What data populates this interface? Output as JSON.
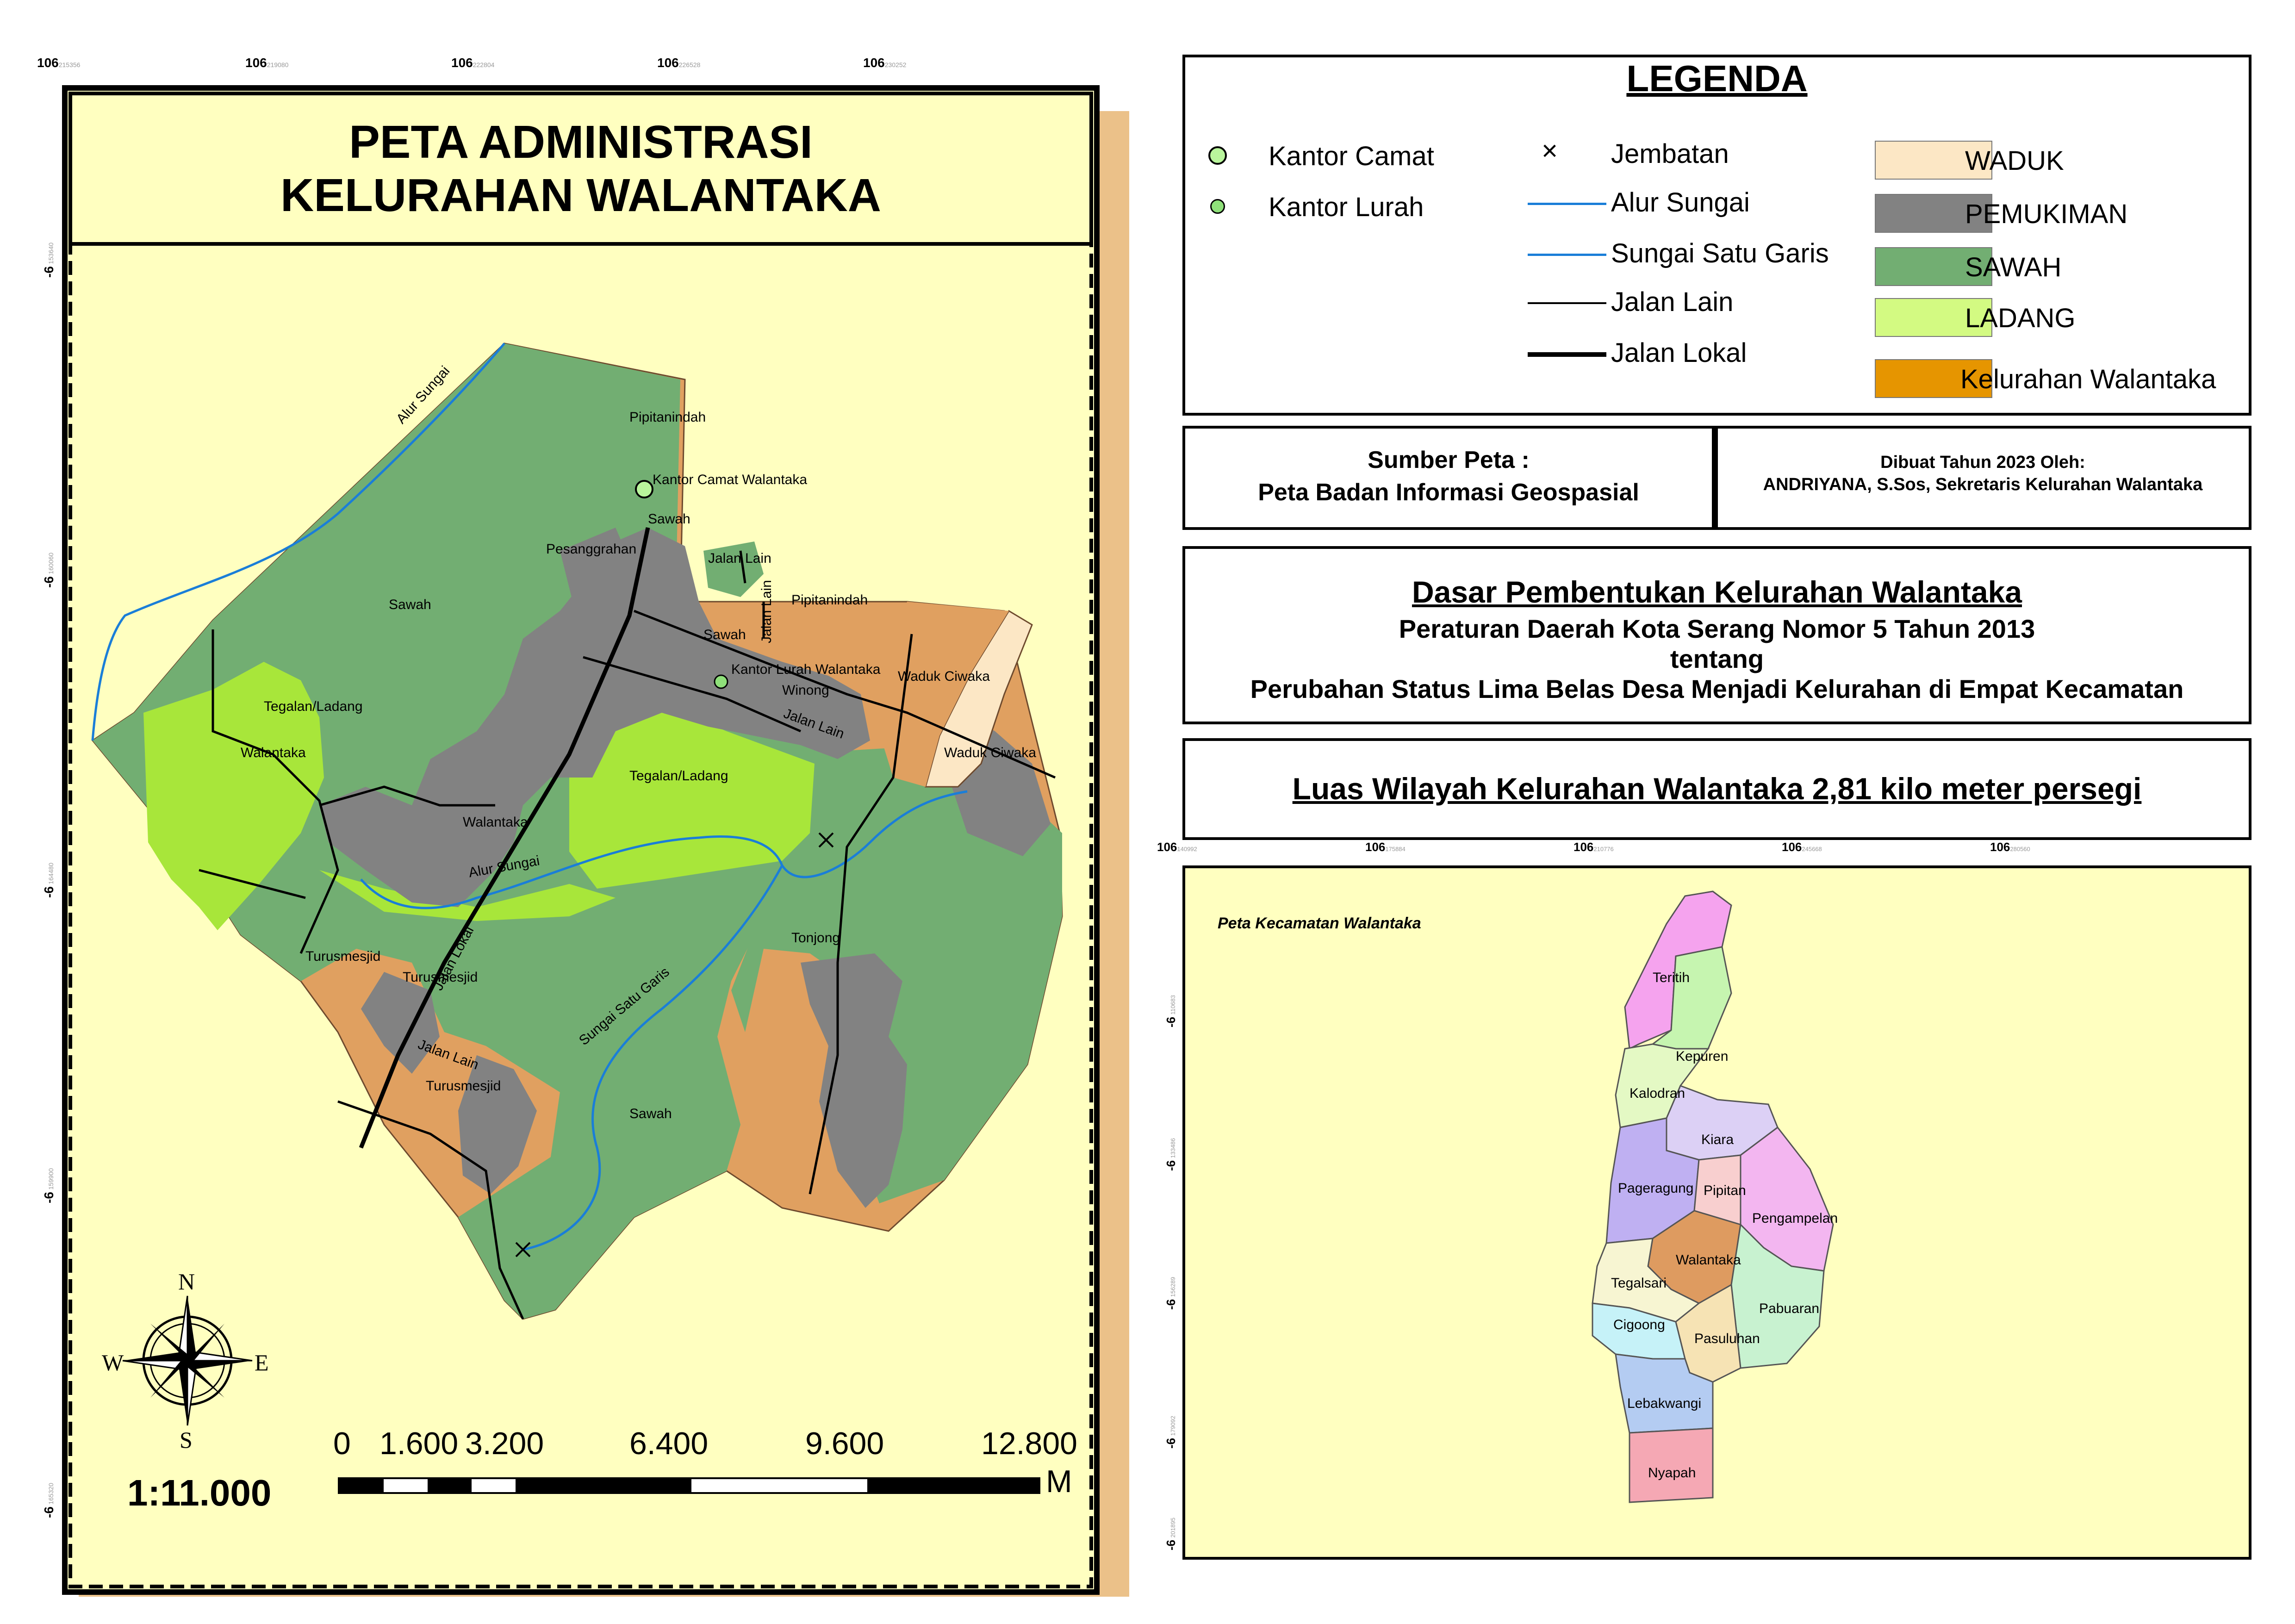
{
  "main_map": {
    "title_line1": "PETA ADMINISTRASI",
    "title_line2": "KELURAHAN WALANTAKA",
    "scale": "1:11.000",
    "scalebar_labels": [
      "0",
      "1.600",
      "3.200",
      "6.400",
      "9.600",
      "12.800"
    ],
    "scalebar_unit": "M",
    "north_arrow": {
      "n": "N",
      "s": "S",
      "e": "E",
      "w": "W"
    },
    "grid_top_labels": [
      {
        "major": "106",
        "minor": "215356"
      },
      {
        "major": "106",
        "minor": "219080"
      },
      {
        "major": "106",
        "minor": "222804"
      },
      {
        "major": "106",
        "minor": "226528"
      },
      {
        "major": "106",
        "minor": "230252"
      }
    ],
    "grid_side_labels": [
      {
        "major": "-6",
        "minor": "153640"
      },
      {
        "major": "-6",
        "minor": "160060"
      },
      {
        "major": "-6",
        "minor": "164480"
      },
      {
        "major": "-6",
        "minor": "159900"
      },
      {
        "major": "-6",
        "minor": "165320"
      }
    ],
    "map_labels": {
      "alur_sungai_top": "Alur Sungai",
      "alur_sungai_mid": "Alur Sungai",
      "pipitanindah_1": "Pipitanindah",
      "pipitanindah_2": "Pipitanindah",
      "kantor_camat": "Kantor Camat Walantaka",
      "sawah_1": "Sawah",
      "sawah_2": "Sawah",
      "sawah_3": "Sawah",
      "sawah_4": "Sawah",
      "pesanggrahan": "Pesanggrahan",
      "jalan_lain_1": "Jalan Lain",
      "jalan_lain_2": "Jalan Lain",
      "jalan_lain_3": "Jalan Lain",
      "jalan_lain_4": "Jalan Lain",
      "kantor_lurah": "Kantor Lurah Walantaka",
      "winong": "Winong",
      "waduk_ciwaka_1": "Waduk Ciwaka",
      "waduk_ciwaka_2": "Waduk Ciwaka",
      "tegalan_1": "Tegalan/Ladang",
      "tegalan_2": "Tegalan/Ladang",
      "walantaka_1": "Walantaka",
      "walantaka_2": "Walantaka",
      "jalan_lokal": "Jalan Lokal",
      "turusmesjid_1": "Turusmesjid",
      "turusmesjid_2": "Turusmesjid",
      "turusmesjid_3": "Turusmesjid",
      "sungai_satu_garis": "Sungai Satu Garis",
      "tonjong": "Tonjong"
    }
  },
  "legend": {
    "title": "LEGENDA",
    "points": [
      {
        "label": "Kantor Camat",
        "icon": "large-circle-icon"
      },
      {
        "label": "Kantor Lurah",
        "icon": "small-circle-icon"
      }
    ],
    "lines": [
      {
        "label": "Jembatan",
        "icon": "cross-icon"
      },
      {
        "label": "Alur Sungai",
        "icon": "blue-line-icon"
      },
      {
        "label": "Sungai Satu Garis",
        "icon": "blue-line-icon"
      },
      {
        "label": "Jalan Lain",
        "icon": "thin-black-line-icon"
      },
      {
        "label": "Jalan Lokal",
        "icon": "thick-black-line-icon"
      }
    ],
    "areas": [
      {
        "label": "WADUK",
        "color": "#FCE7C5"
      },
      {
        "label": "PEMUKIMAN",
        "color": "#828282"
      },
      {
        "label": "SAWAH",
        "color": "#72AE72"
      },
      {
        "label": "LADANG",
        "color": "#D3FA82"
      },
      {
        "label": "Kelurahan Walantaka",
        "color": "#E69500"
      }
    ]
  },
  "source": {
    "title": "Sumber Peta :",
    "text": "Peta Badan Informasi Geospasial",
    "made_line1": "Dibuat Tahun 2023  Oleh:",
    "made_line2": "ANDRIYANA, S.Sos, Sekretaris Kelurahan Walantaka"
  },
  "basis": {
    "title": "Dasar Pembentukan Kelurahan Walantaka",
    "line1": "Peraturan Daerah Kota Serang Nomor 5 Tahun 2013",
    "line2": "tentang",
    "line3": "Perubahan Status Lima Belas Desa Menjadi Kelurahan di Empat Kecamatan"
  },
  "area_box": {
    "text": "Luas Wilayah Kelurahan Walantaka 2,81 kilo meter persegi"
  },
  "inset_map": {
    "title": "Peta Kecamatan Walantaka",
    "grid_top_labels": [
      {
        "major": "106",
        "minor": "140992"
      },
      {
        "major": "106",
        "minor": "175884"
      },
      {
        "major": "106",
        "minor": "210776"
      },
      {
        "major": "106",
        "minor": "245668"
      },
      {
        "major": "106",
        "minor": "280560"
      }
    ],
    "grid_side_labels": [
      {
        "major": "-6",
        "minor": "110683"
      },
      {
        "major": "-6",
        "minor": "133486"
      },
      {
        "major": "-6",
        "minor": "156289"
      },
      {
        "major": "-6",
        "minor": "179092"
      },
      {
        "major": "-6",
        "minor": "201895"
      }
    ],
    "kelurahan": [
      {
        "name": "Teritih",
        "color": "#F5A3EE"
      },
      {
        "name": "Kepuren",
        "color": "#C6F5B0"
      },
      {
        "name": "Kalodran",
        "color": "#E4F9C4"
      },
      {
        "name": "Kiara",
        "color": "#DCD0F5"
      },
      {
        "name": "Pageragung",
        "color": "#BFB0F2"
      },
      {
        "name": "Pipitan",
        "color": "#F8CFCF"
      },
      {
        "name": "Pengampelan",
        "color": "#F3B6F0"
      },
      {
        "name": "Walantaka",
        "color": "#DE9B60"
      },
      {
        "name": "Tegalsari",
        "color": "#F7F5D2"
      },
      {
        "name": "Pabuaran",
        "color": "#C8F2D0"
      },
      {
        "name": "Cigoong",
        "color": "#C6F2F8"
      },
      {
        "name": "Pasuluhan",
        "color": "#F6E3B4"
      },
      {
        "name": "Lebakwangi",
        "color": "#B4CCF2"
      },
      {
        "name": "Nyapah",
        "color": "#F5A8B4"
      }
    ]
  }
}
